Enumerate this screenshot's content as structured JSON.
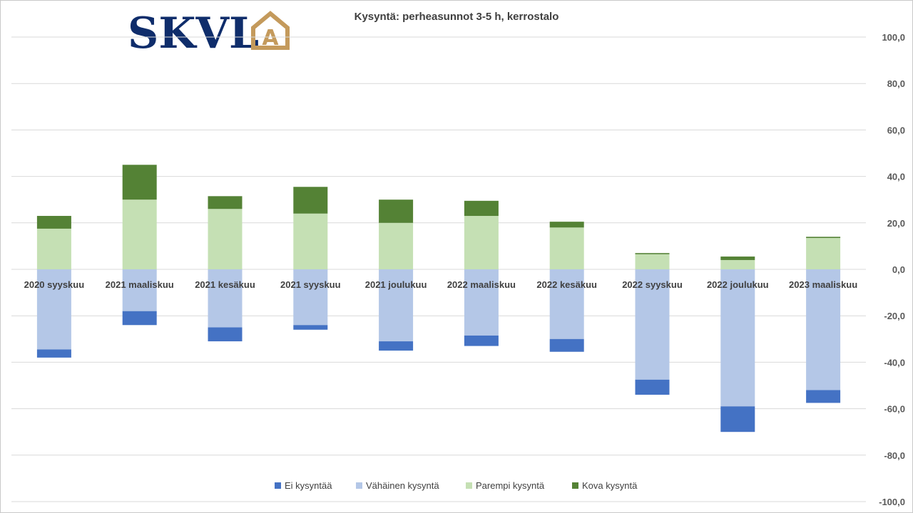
{
  "logo": {
    "text": "SKVL",
    "mark_text": "A",
    "text_color": "#0f2d6b",
    "mark_color": "#c49a5c"
  },
  "chart_data": {
    "type": "bar",
    "stacked": true,
    "title": "Kysyntä: perheasunnot 3-5 h, kerrostalo",
    "categories": [
      "2020 syyskuu",
      "2021 maaliskuu",
      "2021 kesäkuu",
      "2021 syyskuu",
      "2021 joulukuu",
      "2022 maaliskuu",
      "2022 kesäkuu",
      "2022 syyskuu",
      "2022 joulukuu",
      "2023 maaliskuu"
    ],
    "series": [
      {
        "name": "Ei kysyntää",
        "color": "#4472c4",
        "values": [
          -3.5,
          -6.0,
          -6.0,
          -2.0,
          -4.0,
          -4.5,
          -5.5,
          -6.5,
          -11.0,
          -5.5
        ]
      },
      {
        "name": "Vähäinen kysyntä",
        "color": "#b4c7e7",
        "values": [
          -34.5,
          -18.0,
          -25.0,
          -24.0,
          -31.0,
          -28.5,
          -30.0,
          -47.5,
          -59.0,
          -52.0
        ]
      },
      {
        "name": "Parempi kysyntä",
        "color": "#c5e0b4",
        "values": [
          17.5,
          30.0,
          26.0,
          24.0,
          20.0,
          23.0,
          18.0,
          6.5,
          4.0,
          13.5
        ]
      },
      {
        "name": "Kova kysyntä",
        "color": "#548235",
        "values": [
          5.5,
          15.0,
          5.5,
          11.5,
          10.0,
          6.5,
          2.5,
          0.5,
          1.5,
          0.5
        ]
      }
    ],
    "ylim": [
      -100,
      100
    ],
    "yticks": [
      100,
      80,
      60,
      40,
      20,
      0,
      -20,
      -40,
      -60,
      -80,
      -100
    ],
    "ytick_labels": [
      "100,0",
      "80,0",
      "60,0",
      "40,0",
      "20,0",
      "0,0",
      "-20,0",
      "-40,0",
      "-60,0",
      "-80,0",
      "-100,0"
    ],
    "y_axis_side": "right",
    "grid": true,
    "legend_position": "bottom",
    "category_labels_position": "at-zero-line"
  }
}
